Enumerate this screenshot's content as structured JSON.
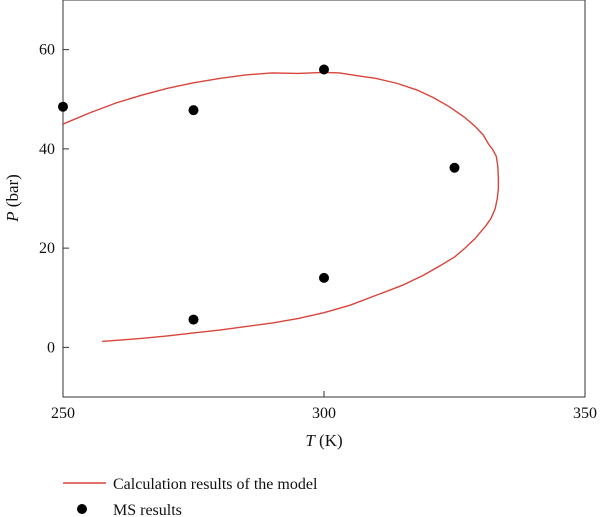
{
  "chart_data": {
    "type": "scatter",
    "xlabel": {
      "var": "T",
      "unit": " (K)"
    },
    "ylabel": {
      "var": "P",
      "unit": " (bar)"
    },
    "xlim": [
      250,
      350
    ],
    "ylim": [
      -10,
      70
    ],
    "xticks": [
      250,
      300,
      350
    ],
    "yticks": [
      0,
      20,
      40,
      60
    ],
    "grid": false,
    "legend_position": "bottom-left",
    "series": [
      {
        "name": "Calculation results of the model",
        "kind": "line",
        "color": "#d9443b",
        "x": [
          250,
          255,
          260,
          265,
          270,
          275,
          280,
          285,
          290,
          295,
          300,
          303,
          306,
          310,
          314,
          318,
          321,
          324,
          327,
          329,
          330.5,
          331.5,
          332.3,
          333,
          333.3,
          333.4,
          333.4,
          333.2,
          332.8,
          332,
          331,
          329,
          327,
          325,
          322,
          319,
          315,
          310,
          305,
          300,
          295,
          290,
          285,
          280,
          275,
          270,
          265,
          260,
          257.5
        ],
        "y": [
          45,
          47.2,
          49.2,
          50.8,
          52.2,
          53.3,
          54.2,
          54.9,
          55.3,
          55.2,
          55.4,
          55.3,
          54.8,
          54.2,
          53.2,
          51.8,
          50.3,
          48.5,
          46.3,
          44.5,
          42.8,
          41,
          39.9,
          38.5,
          36.5,
          34,
          32,
          30,
          28,
          26,
          24.5,
          22,
          20,
          18.2,
          16.3,
          14.5,
          12.5,
          10.5,
          8.5,
          7,
          5.8,
          4.9,
          4.2,
          3.5,
          2.9,
          2.3,
          1.8,
          1.4,
          1.2
        ]
      },
      {
        "name": "MS results",
        "kind": "scatter",
        "color": "#000000",
        "x": [
          250,
          275,
          275,
          300,
          300,
          325
        ],
        "y": [
          48.5,
          47.8,
          5.6,
          56,
          14,
          36.2
        ]
      }
    ]
  }
}
